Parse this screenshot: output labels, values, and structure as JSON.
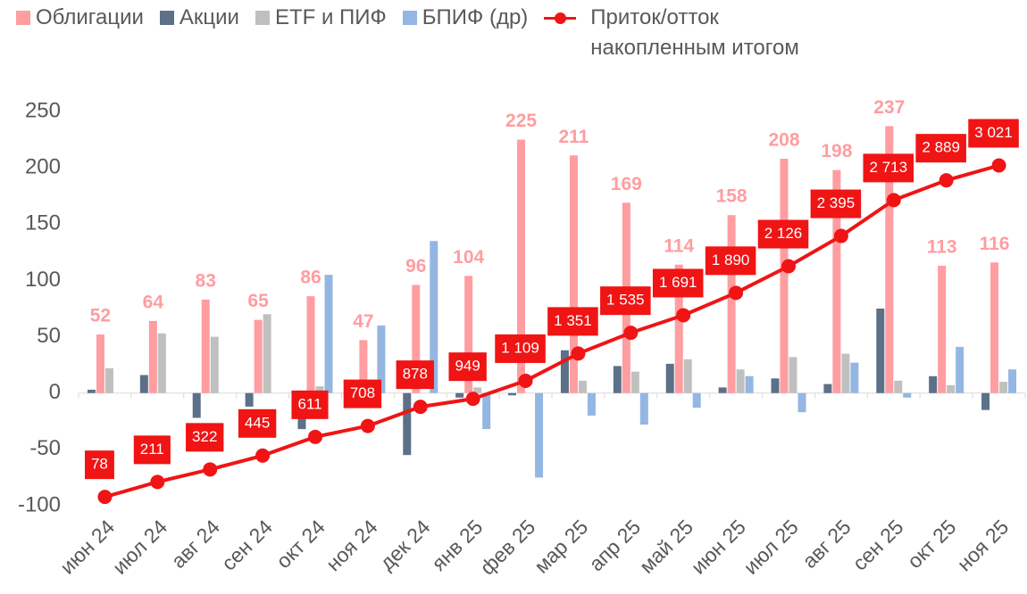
{
  "chart_data": {
    "type": "bar_line",
    "categories": [
      "июн 24",
      "июл 24",
      "авг 24",
      "сен 24",
      "окт 24",
      "ноя 24",
      "дек 24",
      "янв 25",
      "фев 25",
      "мар 25",
      "апр 25",
      "май 25",
      "июн 25",
      "июл 25",
      "авг 25",
      "сен 25",
      "окт 25",
      "ноя 25"
    ],
    "series": [
      {
        "name": "Облигации",
        "color": "#ff9da0",
        "type": "bar",
        "data_labels": true,
        "values": [
          52,
          64,
          83,
          65,
          86,
          47,
          96,
          104,
          225,
          211,
          169,
          114,
          158,
          208,
          198,
          237,
          113,
          116
        ]
      },
      {
        "name": "Акции",
        "color": "#5c7088",
        "type": "bar",
        "values": [
          3,
          16,
          -22,
          -12,
          -32,
          0,
          -55,
          -4,
          -2,
          38,
          24,
          26,
          5,
          13,
          8,
          75,
          15,
          -15
        ]
      },
      {
        "name": "ETF и ПИФ",
        "color": "#c0c0c0",
        "type": "bar",
        "values": [
          22,
          53,
          50,
          70,
          6,
          0,
          0,
          5,
          0,
          11,
          19,
          30,
          21,
          32,
          35,
          11,
          7,
          10
        ]
      },
      {
        "name": "БПИФ (др)",
        "color": "#94b6e2",
        "type": "bar",
        "values": [
          0,
          0,
          0,
          0,
          105,
          60,
          135,
          -32,
          -75,
          -20,
          -28,
          -13,
          15,
          -17,
          27,
          -4,
          41,
          21
        ]
      },
      {
        "name": "Приток/отток накопленным итогом",
        "color": "#f01414",
        "type": "line",
        "axis": "y2",
        "values": [
          78,
          211,
          322,
          445,
          611,
          708,
          878,
          949,
          1109,
          1351,
          1535,
          1691,
          1890,
          2126,
          2395,
          2713,
          2889,
          3021
        ],
        "value_labels": [
          "78",
          "211",
          "322",
          "445",
          "611",
          "708",
          "878",
          "949",
          "1 109",
          "1 351",
          "1 535",
          "1 691",
          "1 890",
          "2 126",
          "2 395",
          "2 713",
          "2 889",
          "3 021"
        ]
      }
    ],
    "ylim": [
      -100,
      250
    ],
    "yticks": [
      -100,
      -50,
      0,
      50,
      100,
      150,
      200,
      250
    ],
    "y2lim": [
      0,
      3500
    ],
    "legend": "top-left",
    "grid": false
  }
}
